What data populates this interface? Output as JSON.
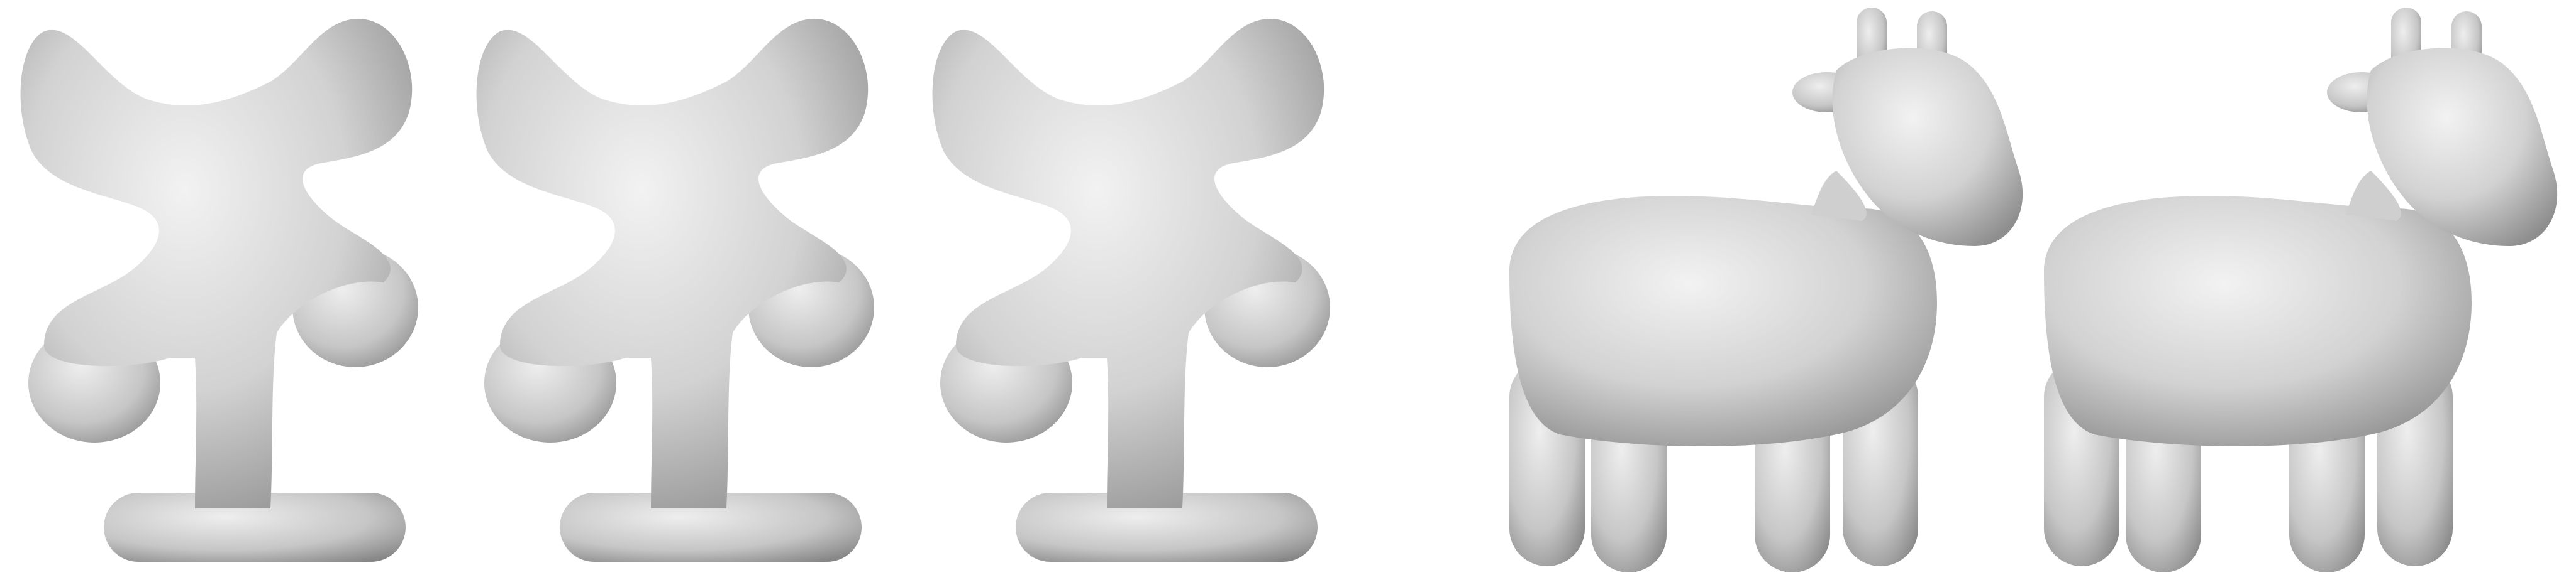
{
  "figure": {
    "background": "#ffffff",
    "panels": [
      {
        "id": "blob-frame-1",
        "shape": "blob-character",
        "stage": "early"
      },
      {
        "id": "blob-frame-2",
        "shape": "blob-character",
        "stage": "middle"
      },
      {
        "id": "blob-frame-3",
        "shape": "blob-character",
        "stage": "late"
      },
      {
        "id": "cow-frame-1",
        "shape": "cow",
        "stage": "early"
      },
      {
        "id": "cow-frame-2",
        "shape": "cow",
        "stage": "late"
      }
    ],
    "colormap": {
      "red": "#c81e14",
      "orange": "#ee6a10",
      "yellow": "#f4d021",
      "neutral": "#dcdcdc",
      "cyan": "#34c6dc",
      "blue": "#0f4ea8"
    },
    "surface_color": "#c9c9c9"
  }
}
